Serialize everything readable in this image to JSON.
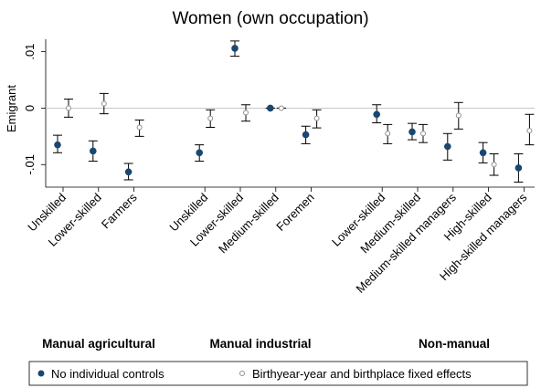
{
  "chart_data": {
    "type": "errorbar",
    "title": "Women (own occupation)",
    "y_label": "Emigrant",
    "categories": [
      "Unskilled",
      "Lower-skilled",
      "Farmers",
      null,
      "Unskilled",
      "Lower-skilled",
      "Medium-skilled",
      "Foremen",
      null,
      "Lower-skilled",
      "Medium-skilled",
      "Medium-skilled managers",
      "High-skilled",
      "High-skilled managers"
    ],
    "group_labels": [
      "Manual agricultural",
      "Manual industrial",
      "Non-manual"
    ],
    "ylim": [
      -0.014,
      0.0135
    ],
    "yticks": [
      {
        "value": -0.01,
        "label": "-.01"
      },
      0,
      {
        "value": 0.01,
        "label": ".01"
      }
    ],
    "series": [
      {
        "name": "No individual controls",
        "color": "#1a476f",
        "marker": "filled",
        "values": [
          -0.0065,
          -0.0076,
          -0.0113,
          null,
          -0.0079,
          0.0106,
          0,
          -0.0047,
          null,
          -0.0011,
          -0.0042,
          -0.0068,
          -0.0079,
          -0.0106
        ],
        "lower": [
          -0.0079,
          -0.0094,
          -0.0127,
          null,
          -0.0094,
          0.0092,
          0,
          -0.0063,
          null,
          -0.0026,
          -0.0056,
          -0.0092,
          -0.0097,
          -0.0131
        ],
        "upper": [
          -0.0048,
          -0.0058,
          -0.0098,
          null,
          -0.0065,
          0.0119,
          0,
          -0.0032,
          null,
          0.0006,
          -0.0027,
          -0.0045,
          -0.0061,
          -0.0081
        ]
      },
      {
        "name": "Birthyear-year and birthplace fixed effects",
        "color": "#909090",
        "marker": "hollow",
        "values": [
          0,
          0.0008,
          -0.0034,
          null,
          -0.0018,
          -0.0008,
          0,
          -0.0018,
          null,
          -0.0045,
          -0.0045,
          -0.0013,
          -0.01,
          -0.004
        ],
        "lower": [
          -0.0016,
          -0.001,
          -0.005,
          null,
          -0.0034,
          -0.0023,
          0,
          -0.0035,
          null,
          -0.0063,
          -0.0061,
          -0.0037,
          -0.0119,
          -0.0065
        ],
        "upper": [
          0.0016,
          0.0026,
          -0.0021,
          null,
          -0.0003,
          0.0006,
          0,
          -0.0003,
          null,
          -0.0029,
          -0.0029,
          0.001,
          -0.0081,
          -0.0011
        ]
      }
    ]
  }
}
